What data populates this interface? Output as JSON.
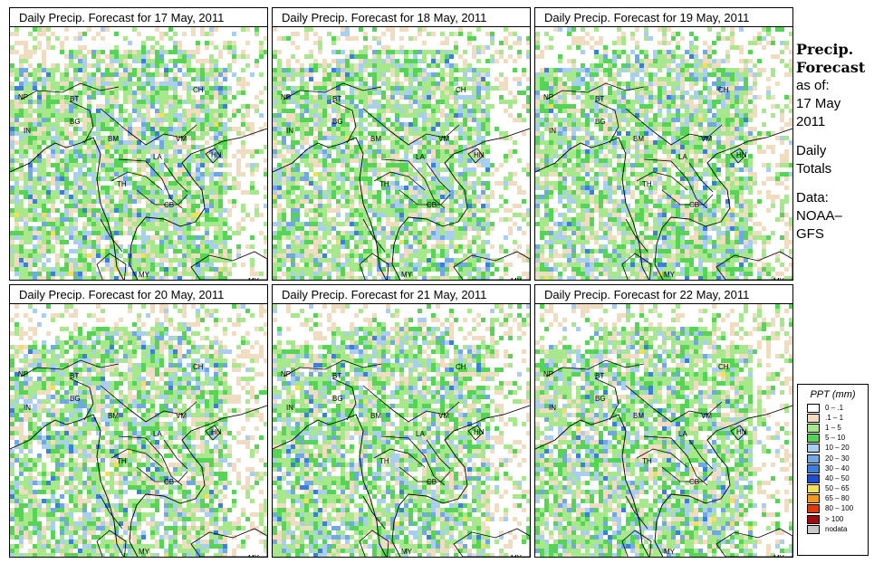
{
  "panels": [
    {
      "title": "Daily Precip. Forecast for  17 May, 2011"
    },
    {
      "title": "Daily Precip. Forecast for  18 May, 2011"
    },
    {
      "title": "Daily Precip. Forecast for  19 May, 2011"
    },
    {
      "title": "Daily Precip. Forecast for  20 May, 2011"
    },
    {
      "title": "Daily Precip. Forecast for  21 May, 2011"
    },
    {
      "title": "Daily Precip. Forecast for  22 May, 2011"
    }
  ],
  "map_labels": [
    "NP",
    "BT",
    "BG",
    "IN",
    "CH",
    "BM",
    "VM",
    "HN",
    "LA",
    "TH",
    "CB",
    "MY",
    "MY",
    "ID",
    "ID"
  ],
  "sidebar": {
    "heading1": "Precip.",
    "heading2": "Forecast",
    "asof": "as of:",
    "date1": "17 May",
    "date2": "2011",
    "daily1": "Daily",
    "daily2": "Totals",
    "data1": "Data:",
    "data2": "NOAA–",
    "data3": "GFS"
  },
  "legend": {
    "title": "PPT (mm)",
    "items": [
      {
        "label": "0 – .1",
        "color": "#ffffff"
      },
      {
        "label": ".1 – 1",
        "color": "#f0dcc0"
      },
      {
        "label": "1 – 5",
        "color": "#a8e88c"
      },
      {
        "label": "5 – 10",
        "color": "#55d455"
      },
      {
        "label": "10 – 20",
        "color": "#a9cff0"
      },
      {
        "label": "20 – 30",
        "color": "#6fa8e4"
      },
      {
        "label": "30 – 40",
        "color": "#3a7fd9"
      },
      {
        "label": "40 – 50",
        "color": "#1c4fd0"
      },
      {
        "label": "50 – 65",
        "color": "#f2e05a"
      },
      {
        "label": "65 – 80",
        "color": "#f59a1c"
      },
      {
        "label": "80 – 100",
        "color": "#e03a0c"
      },
      {
        "label": "> 100",
        "color": "#a00c0c"
      },
      {
        "label": "nodata",
        "color": "#c8c8c8"
      }
    ]
  }
}
